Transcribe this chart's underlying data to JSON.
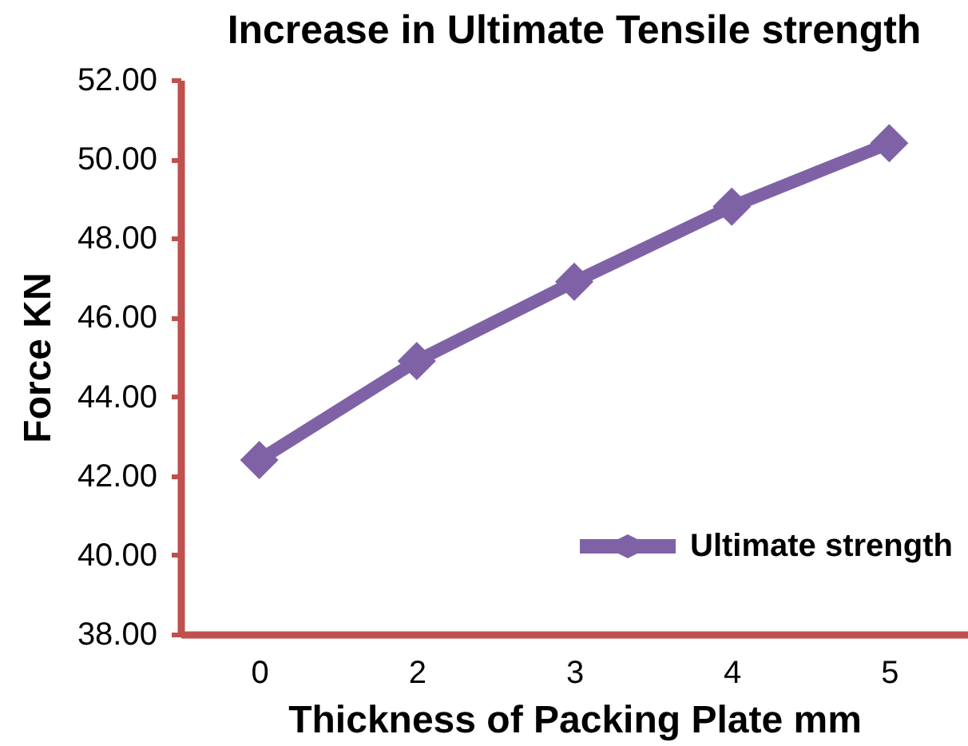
{
  "chart_data": {
    "type": "line",
    "title": "Increase in Ultimate Tensile strength",
    "xlabel": "Thickness of Packing Plate  mm",
    "ylabel": "Force KN",
    "categories": [
      "0",
      "2",
      "3",
      "4",
      "5"
    ],
    "series": [
      {
        "name": "Ultimate strength",
        "color": "#7f62a6",
        "values": [
          42.4,
          44.9,
          46.9,
          48.8,
          50.4
        ]
      }
    ],
    "ylim": [
      38,
      52
    ],
    "yticks": [
      {
        "value": 38,
        "label": "38.00"
      },
      {
        "value": 40,
        "label": "40.00"
      },
      {
        "value": 42,
        "label": "42.00"
      },
      {
        "value": 44,
        "label": "44.00"
      },
      {
        "value": 46,
        "label": "46.00"
      },
      {
        "value": 48,
        "label": "48.00"
      },
      {
        "value": 50,
        "label": "50.00"
      },
      {
        "value": 52,
        "label": "52.00"
      }
    ],
    "legend": "bottom right",
    "marker": "diamond",
    "line_style": "solid",
    "grid": false
  }
}
